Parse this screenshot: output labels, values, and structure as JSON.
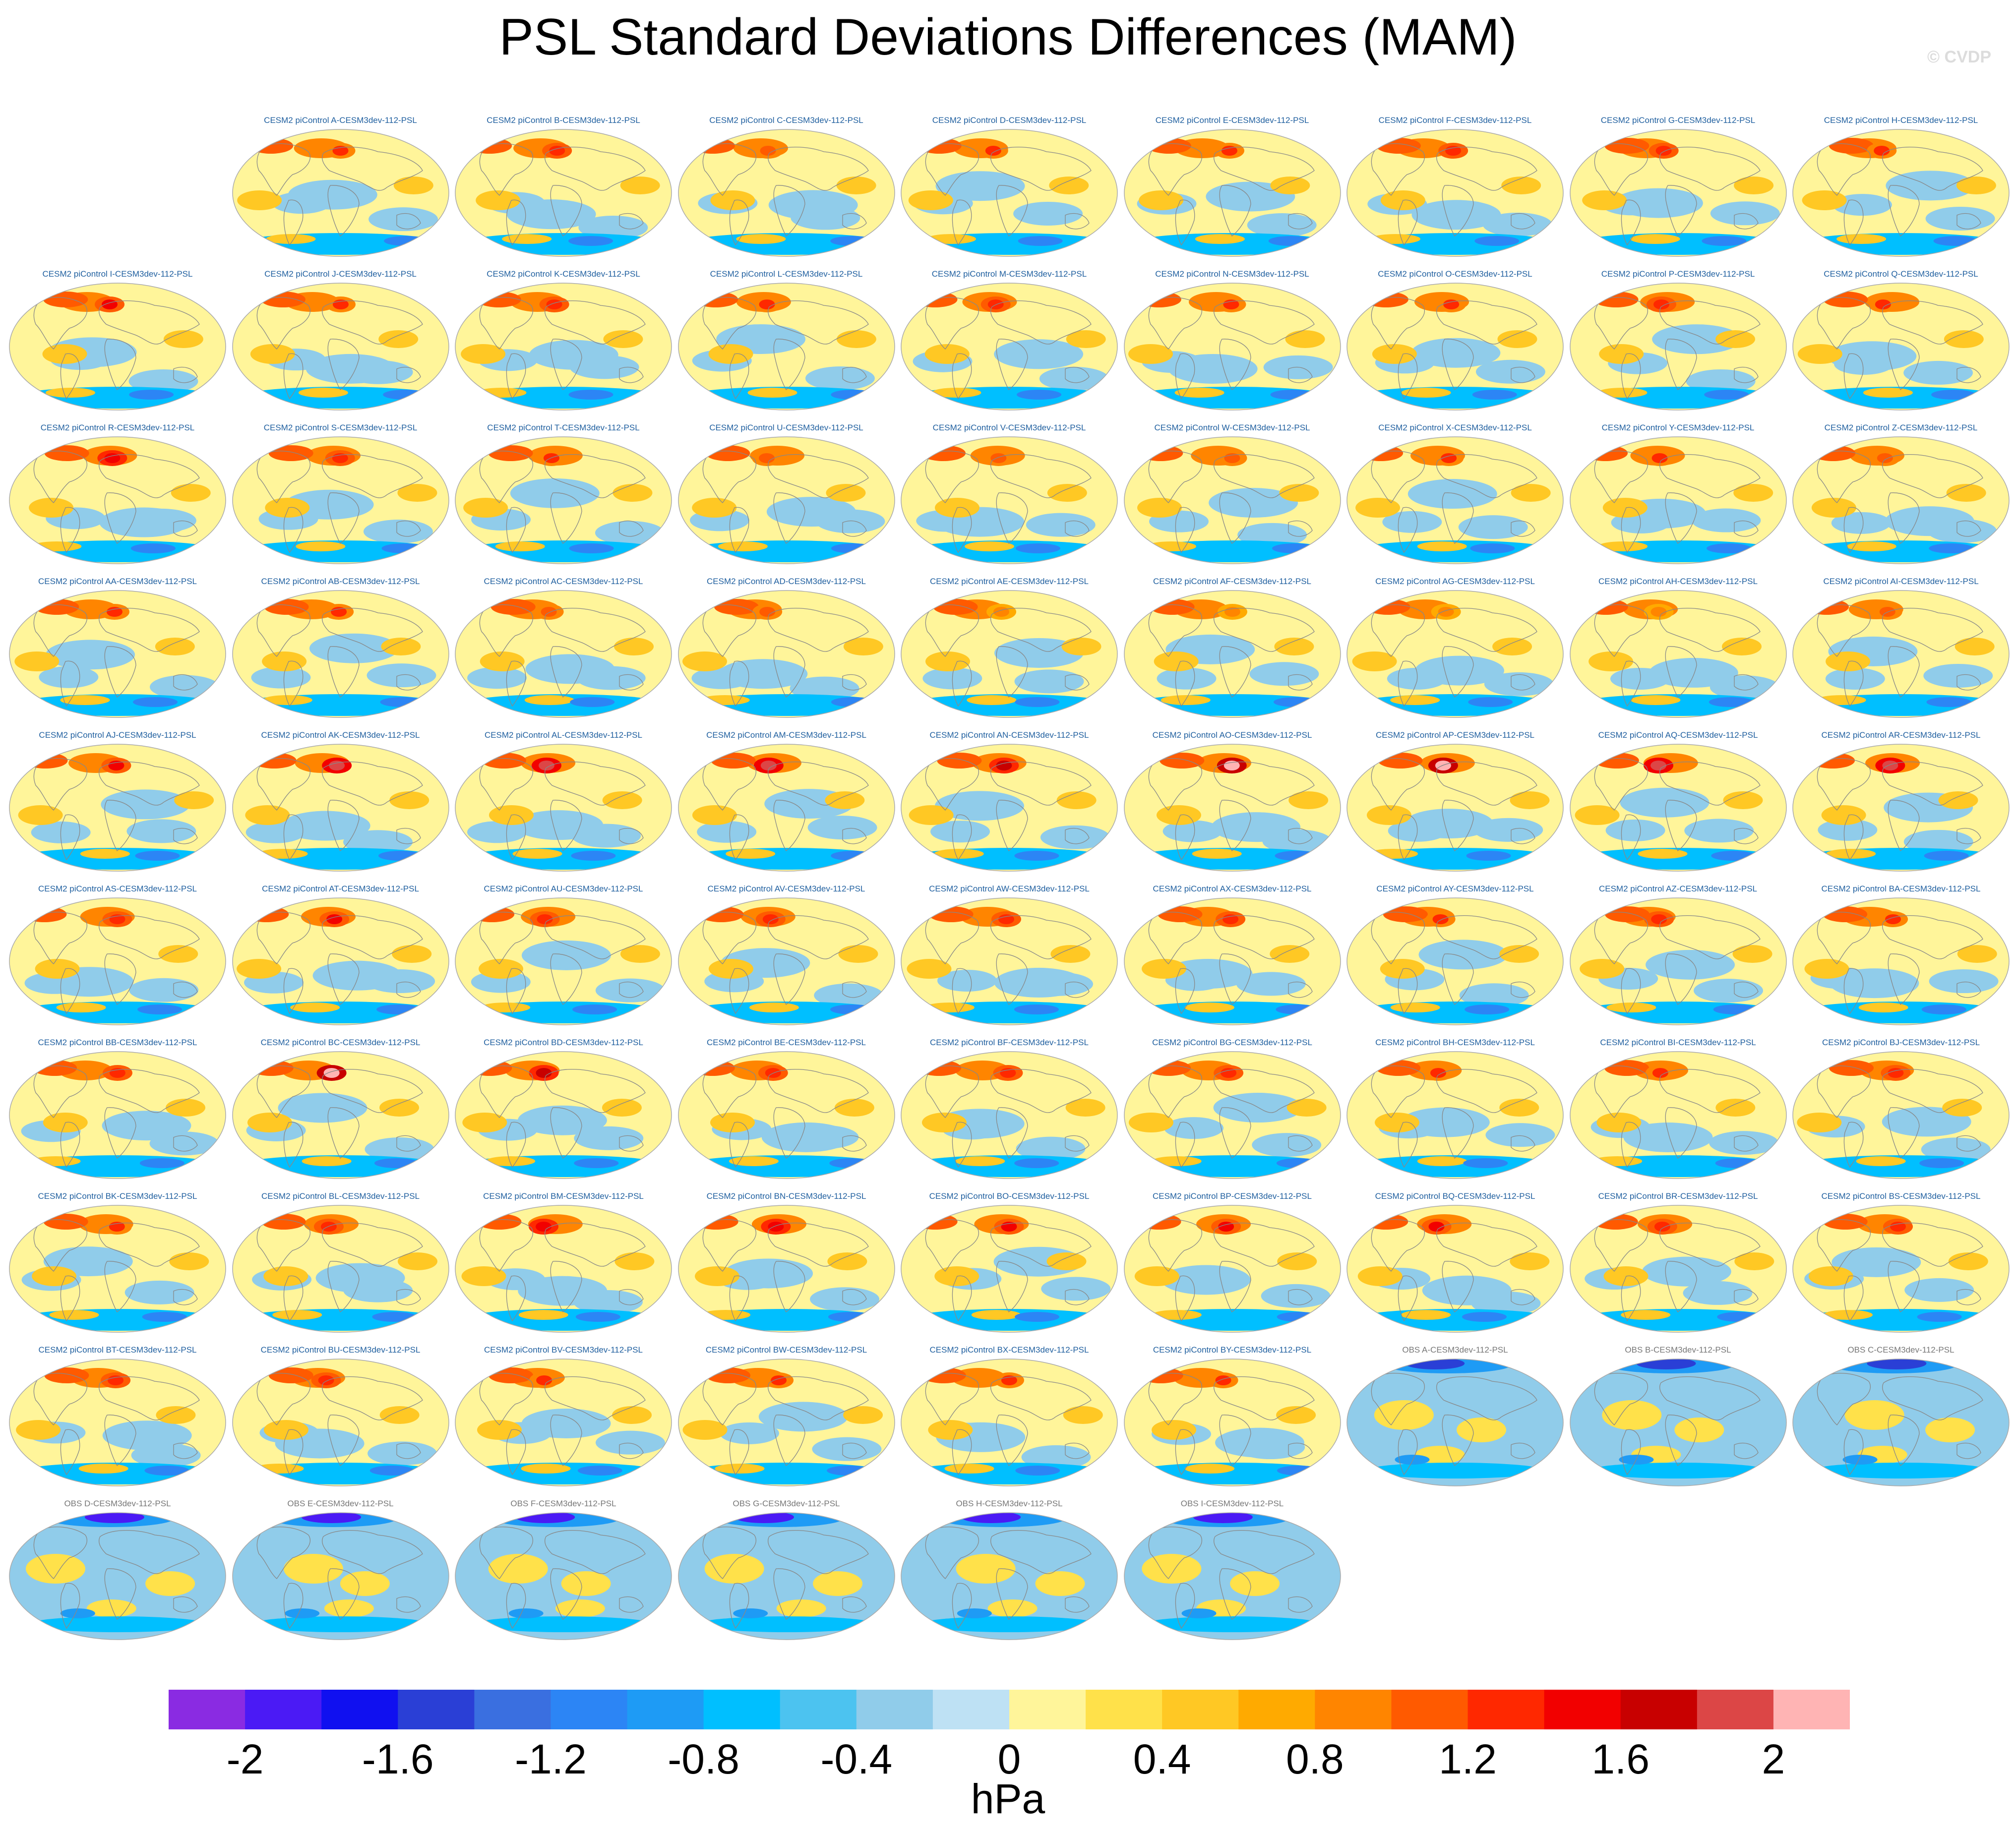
{
  "chart_data": {
    "type": "map_panels",
    "title": "PSL Standard Deviations Differences (MAM)",
    "watermark": "© CVDP",
    "units": "hPa",
    "colorbar": {
      "levels": [
        -2.2,
        -2.0,
        -1.8,
        -1.6,
        -1.4,
        -1.2,
        -1.0,
        -0.8,
        -0.6,
        -0.4,
        -0.2,
        0.0,
        0.2,
        0.4,
        0.6,
        0.8,
        1.0,
        1.2,
        1.4,
        1.6,
        1.8,
        2.0,
        2.2
      ],
      "colors": [
        "#8a2be2",
        "#4b1af5",
        "#1010f0",
        "#2a3fd6",
        "#3a6fe0",
        "#2c85f5",
        "#1e9bf5",
        "#00bfff",
        "#4cc3f0",
        "#90ccea",
        "#bee1f4",
        "#fff59a",
        "#ffe14a",
        "#ffc824",
        "#ffaa00",
        "#ff8500",
        "#ff5a00",
        "#ff2800",
        "#f20000",
        "#c80000",
        "#dc4646",
        "#ffb4b4"
      ],
      "tick_labels": [
        "-2",
        "-1.6",
        "-1.2",
        "-0.8",
        "-0.4",
        "0",
        "0.4",
        "0.8",
        "1.2",
        "1.6",
        "2"
      ],
      "tick_values": [
        -2.0,
        -1.6,
        -1.2,
        -0.8,
        -0.4,
        0.0,
        0.4,
        0.8,
        1.2,
        1.6,
        2.0
      ]
    },
    "model_title_color": "#1f5f9f",
    "obs_title_color": "#777777",
    "panels": [
      {
        "title": "CESM2 piControl A-CESM3dev-112-PSL",
        "kind": "model",
        "peak": 1.2
      },
      {
        "title": "CESM2 piControl B-CESM3dev-112-PSL",
        "kind": "model",
        "peak": 1.3
      },
      {
        "title": "CESM2 piControl C-CESM3dev-112-PSL",
        "kind": "model",
        "peak": 1.1
      },
      {
        "title": "CESM2 piControl D-CESM3dev-112-PSL",
        "kind": "model",
        "peak": 1.2
      },
      {
        "title": "CESM2 piControl E-CESM3dev-112-PSL",
        "kind": "model",
        "peak": 1.2
      },
      {
        "title": "CESM2 piControl F-CESM3dev-112-PSL",
        "kind": "model",
        "peak": 1.3
      },
      {
        "title": "CESM2 piControl G-CESM3dev-112-PSL",
        "kind": "model",
        "peak": 1.3
      },
      {
        "title": "CESM2 piControl H-CESM3dev-112-PSL",
        "kind": "model",
        "peak": 1.2
      },
      {
        "title": "CESM2 piControl I-CESM3dev-112-PSL",
        "kind": "model",
        "peak": 1.4
      },
      {
        "title": "CESM2 piControl J-CESM3dev-112-PSL",
        "kind": "model",
        "peak": 1.2
      },
      {
        "title": "CESM2 piControl K-CESM3dev-112-PSL",
        "kind": "model",
        "peak": 1.3
      },
      {
        "title": "CESM2 piControl L-CESM3dev-112-PSL",
        "kind": "model",
        "peak": 1.2
      },
      {
        "title": "CESM2 piControl M-CESM3dev-112-PSL",
        "kind": "model",
        "peak": 1.3
      },
      {
        "title": "CESM2 piControl N-CESM3dev-112-PSL",
        "kind": "model",
        "peak": 1.2
      },
      {
        "title": "CESM2 piControl O-CESM3dev-112-PSL",
        "kind": "model",
        "peak": 1.2
      },
      {
        "title": "CESM2 piControl P-CESM3dev-112-PSL",
        "kind": "model",
        "peak": 1.3
      },
      {
        "title": "CESM2 piControl Q-CESM3dev-112-PSL",
        "kind": "model",
        "peak": 1.2
      },
      {
        "title": "CESM2 piControl R-CESM3dev-112-PSL",
        "kind": "model",
        "peak": 1.5
      },
      {
        "title": "CESM2 piControl S-CESM3dev-112-PSL",
        "kind": "model",
        "peak": 1.3
      },
      {
        "title": "CESM2 piControl T-CESM3dev-112-PSL",
        "kind": "model",
        "peak": 1.2
      },
      {
        "title": "CESM2 piControl U-CESM3dev-112-PSL",
        "kind": "model",
        "peak": 1.1
      },
      {
        "title": "CESM2 piControl V-CESM3dev-112-PSL",
        "kind": "model",
        "peak": 1.1
      },
      {
        "title": "CESM2 piControl W-CESM3dev-112-PSL",
        "kind": "model",
        "peak": 1.1
      },
      {
        "title": "CESM2 piControl X-CESM3dev-112-PSL",
        "kind": "model",
        "peak": 1.2
      },
      {
        "title": "CESM2 piControl Y-CESM3dev-112-PSL",
        "kind": "model",
        "peak": 1.2
      },
      {
        "title": "CESM2 piControl Z-CESM3dev-112-PSL",
        "kind": "model",
        "peak": 1.1
      },
      {
        "title": "CESM2 piControl AA-CESM3dev-112-PSL",
        "kind": "model",
        "peak": 1.2
      },
      {
        "title": "CESM2 piControl AB-CESM3dev-112-PSL",
        "kind": "model",
        "peak": 1.2
      },
      {
        "title": "CESM2 piControl AC-CESM3dev-112-PSL",
        "kind": "model",
        "peak": 1.0
      },
      {
        "title": "CESM2 piControl AD-CESM3dev-112-PSL",
        "kind": "model",
        "peak": 1.0
      },
      {
        "title": "CESM2 piControl AE-CESM3dev-112-PSL",
        "kind": "model",
        "peak": 0.9
      },
      {
        "title": "CESM2 piControl AF-CESM3dev-112-PSL",
        "kind": "model",
        "peak": 0.9
      },
      {
        "title": "CESM2 piControl AG-CESM3dev-112-PSL",
        "kind": "model",
        "peak": 0.9
      },
      {
        "title": "CESM2 piControl AH-CESM3dev-112-PSL",
        "kind": "model",
        "peak": 0.9
      },
      {
        "title": "CESM2 piControl AI-CESM3dev-112-PSL",
        "kind": "model",
        "peak": 1.0
      },
      {
        "title": "CESM2 piControl AJ-CESM3dev-112-PSL",
        "kind": "model",
        "peak": 1.4
      },
      {
        "title": "CESM2 piControl AK-CESM3dev-112-PSL",
        "kind": "model",
        "peak": 1.9
      },
      {
        "title": "CESM2 piControl AL-CESM3dev-112-PSL",
        "kind": "model",
        "peak": 1.8
      },
      {
        "title": "CESM2 piControl AM-CESM3dev-112-PSL",
        "kind": "model",
        "peak": 1.8
      },
      {
        "title": "CESM2 piControl AN-CESM3dev-112-PSL",
        "kind": "model",
        "peak": 1.6
      },
      {
        "title": "CESM2 piControl AO-CESM3dev-112-PSL",
        "kind": "model",
        "peak": 2.1
      },
      {
        "title": "CESM2 piControl AP-CESM3dev-112-PSL",
        "kind": "model",
        "peak": 2.1
      },
      {
        "title": "CESM2 piControl AQ-CESM3dev-112-PSL",
        "kind": "model",
        "peak": 1.9
      },
      {
        "title": "CESM2 piControl AR-CESM3dev-112-PSL",
        "kind": "model",
        "peak": 1.9
      },
      {
        "title": "CESM2 piControl AS-CESM3dev-112-PSL",
        "kind": "model",
        "peak": 1.3
      },
      {
        "title": "CESM2 piControl AT-CESM3dev-112-PSL",
        "kind": "model",
        "peak": 1.4
      },
      {
        "title": "CESM2 piControl AU-CESM3dev-112-PSL",
        "kind": "model",
        "peak": 1.3
      },
      {
        "title": "CESM2 piControl AV-CESM3dev-112-PSL",
        "kind": "model",
        "peak": 1.3
      },
      {
        "title": "CESM2 piControl AW-CESM3dev-112-PSL",
        "kind": "model",
        "peak": 1.3
      },
      {
        "title": "CESM2 piControl AX-CESM3dev-112-PSL",
        "kind": "model",
        "peak": 1.3
      },
      {
        "title": "CESM2 piControl AY-CESM3dev-112-PSL",
        "kind": "model",
        "peak": 1.2
      },
      {
        "title": "CESM2 piControl AZ-CESM3dev-112-PSL",
        "kind": "model",
        "peak": 1.3
      },
      {
        "title": "CESM2 piControl BA-CESM3dev-112-PSL",
        "kind": "model",
        "peak": 1.2
      },
      {
        "title": "CESM2 piControl BB-CESM3dev-112-PSL",
        "kind": "model",
        "peak": 1.3
      },
      {
        "title": "CESM2 piControl BC-CESM3dev-112-PSL",
        "kind": "model",
        "peak": 2.0
      },
      {
        "title": "CESM2 piControl BD-CESM3dev-112-PSL",
        "kind": "model",
        "peak": 1.6
      },
      {
        "title": "CESM2 piControl BE-CESM3dev-112-PSL",
        "kind": "model",
        "peak": 1.3
      },
      {
        "title": "CESM2 piControl BF-CESM3dev-112-PSL",
        "kind": "model",
        "peak": 1.3
      },
      {
        "title": "CESM2 piControl BG-CESM3dev-112-PSL",
        "kind": "model",
        "peak": 1.3
      },
      {
        "title": "CESM2 piControl BH-CESM3dev-112-PSL",
        "kind": "model",
        "peak": 1.2
      },
      {
        "title": "CESM2 piControl BI-CESM3dev-112-PSL",
        "kind": "model",
        "peak": 1.2
      },
      {
        "title": "CESM2 piControl BJ-CESM3dev-112-PSL",
        "kind": "model",
        "peak": 1.3
      },
      {
        "title": "CESM2 piControl BK-CESM3dev-112-PSL",
        "kind": "model",
        "peak": 1.2
      },
      {
        "title": "CESM2 piControl BL-CESM3dev-112-PSL",
        "kind": "model",
        "peak": 1.3
      },
      {
        "title": "CESM2 piControl BM-CESM3dev-112-PSL",
        "kind": "model",
        "peak": 1.5
      },
      {
        "title": "CESM2 piControl BN-CESM3dev-112-PSL",
        "kind": "model",
        "peak": 1.5
      },
      {
        "title": "CESM2 piControl BO-CESM3dev-112-PSL",
        "kind": "model",
        "peak": 1.4
      },
      {
        "title": "CESM2 piControl BP-CESM3dev-112-PSL",
        "kind": "model",
        "peak": 1.4
      },
      {
        "title": "CESM2 piControl BQ-CESM3dev-112-PSL",
        "kind": "model",
        "peak": 1.4
      },
      {
        "title": "CESM2 piControl BR-CESM3dev-112-PSL",
        "kind": "model",
        "peak": 1.3
      },
      {
        "title": "CESM2 piControl BS-CESM3dev-112-PSL",
        "kind": "model",
        "peak": 1.3
      },
      {
        "title": "CESM2 piControl BT-CESM3dev-112-PSL",
        "kind": "model",
        "peak": 1.3
      },
      {
        "title": "CESM2 piControl BU-CESM3dev-112-PSL",
        "kind": "model",
        "peak": 1.3
      },
      {
        "title": "CESM2 piControl BV-CESM3dev-112-PSL",
        "kind": "model",
        "peak": 1.2
      },
      {
        "title": "CESM2 piControl BW-CESM3dev-112-PSL",
        "kind": "model",
        "peak": 1.2
      },
      {
        "title": "CESM2 piControl BX-CESM3dev-112-PSL",
        "kind": "model",
        "peak": 1.2
      },
      {
        "title": "CESM2 piControl BY-CESM3dev-112-PSL",
        "kind": "model",
        "peak": 1.2
      },
      {
        "title": "OBS A-CESM3dev-112-PSL",
        "kind": "obs",
        "peak": -1.6
      },
      {
        "title": "OBS B-CESM3dev-112-PSL",
        "kind": "obs",
        "peak": -1.6
      },
      {
        "title": "OBS C-CESM3dev-112-PSL",
        "kind": "obs",
        "peak": -1.5
      },
      {
        "title": "OBS D-CESM3dev-112-PSL",
        "kind": "obs",
        "peak": -1.9
      },
      {
        "title": "OBS E-CESM3dev-112-PSL",
        "kind": "obs",
        "peak": -1.9
      },
      {
        "title": "OBS F-CESM3dev-112-PSL",
        "kind": "obs",
        "peak": -1.9
      },
      {
        "title": "OBS G-CESM3dev-112-PSL",
        "kind": "obs",
        "peak": -1.9
      },
      {
        "title": "OBS H-CESM3dev-112-PSL",
        "kind": "obs",
        "peak": -1.9
      },
      {
        "title": "OBS I-CESM3dev-112-PSL",
        "kind": "obs",
        "peak": -1.9
      }
    ]
  }
}
